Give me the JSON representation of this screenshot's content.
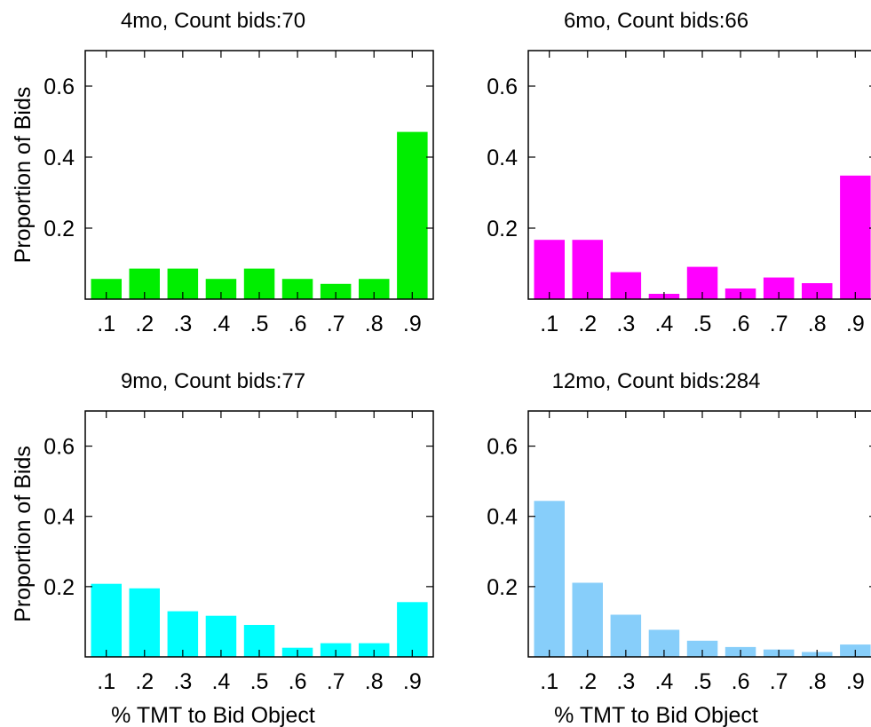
{
  "chart_data": [
    {
      "type": "bar",
      "title": "4mo, Count bids:70",
      "ylabel": "Proportion of Bids",
      "xlabel": "",
      "categories": [
        ".1",
        ".2",
        ".3",
        ".4",
        ".5",
        ".6",
        ".7",
        ".8",
        ".9"
      ],
      "values": [
        0.057,
        0.086,
        0.086,
        0.057,
        0.086,
        0.057,
        0.043,
        0.057,
        0.471
      ],
      "ylim": [
        0,
        0.7
      ],
      "yticks": [
        0.2,
        0.4,
        0.6
      ],
      "ytick_labels": [
        "0.2",
        "0.4",
        "0.6"
      ],
      "color": "#00ee00",
      "grid": false
    },
    {
      "type": "bar",
      "title": "6mo, Count bids:66",
      "ylabel": "",
      "xlabel": "",
      "categories": [
        ".1",
        ".2",
        ".3",
        ".4",
        ".5",
        ".6",
        ".7",
        ".8",
        ".9"
      ],
      "values": [
        0.167,
        0.167,
        0.076,
        0.015,
        0.091,
        0.03,
        0.061,
        0.045,
        0.348
      ],
      "ylim": [
        0,
        0.7
      ],
      "yticks": [
        0.2,
        0.4,
        0.6
      ],
      "ytick_labels": [
        "0.2",
        "0.4",
        "0.6"
      ],
      "color": "#ff00ff",
      "grid": false
    },
    {
      "type": "bar",
      "title": "9mo, Count bids:77",
      "ylabel": "Proportion of Bids",
      "xlabel": "% TMT to Bid Object",
      "categories": [
        ".1",
        ".2",
        ".3",
        ".4",
        ".5",
        ".6",
        ".7",
        ".8",
        ".9"
      ],
      "values": [
        0.208,
        0.195,
        0.13,
        0.117,
        0.091,
        0.026,
        0.039,
        0.039,
        0.156
      ],
      "ylim": [
        0,
        0.7
      ],
      "yticks": [
        0.2,
        0.4,
        0.6
      ],
      "ytick_labels": [
        "0.2",
        "0.4",
        "0.6"
      ],
      "color": "#00ffff",
      "grid": false
    },
    {
      "type": "bar",
      "title": "12mo, Count bids:284",
      "ylabel": "",
      "xlabel": "% TMT to Bid Object",
      "categories": [
        ".1",
        ".2",
        ".3",
        ".4",
        ".5",
        ".6",
        ".7",
        ".8",
        ".9"
      ],
      "values": [
        0.444,
        0.211,
        0.12,
        0.077,
        0.046,
        0.028,
        0.021,
        0.014,
        0.035
      ],
      "ylim": [
        0,
        0.7
      ],
      "yticks": [
        0.2,
        0.4,
        0.6
      ],
      "ytick_labels": [
        "0.2",
        "0.4",
        "0.6"
      ],
      "color": "#87cefa",
      "grid": false
    }
  ]
}
